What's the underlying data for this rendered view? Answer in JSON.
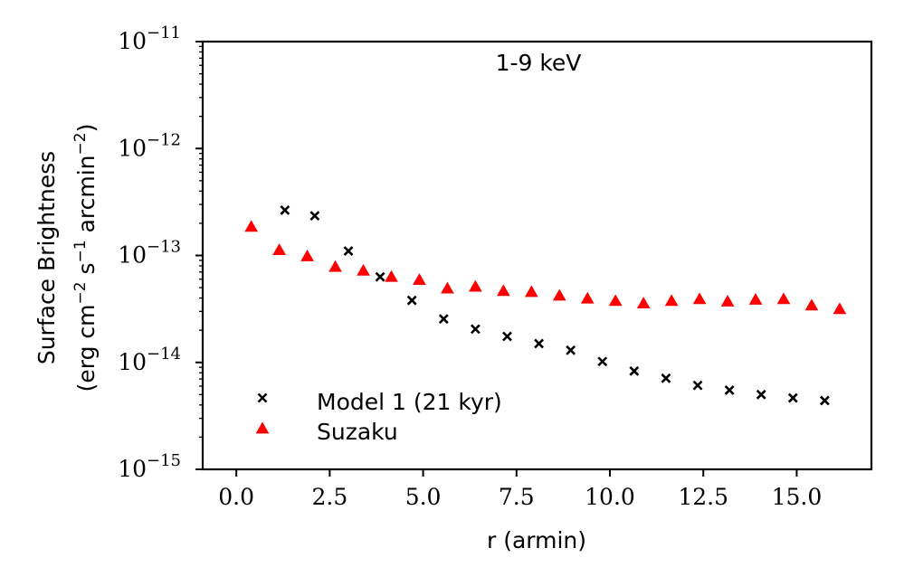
{
  "chart_data": {
    "type": "scatter",
    "title": "1-9 keV",
    "xlabel": "r (armin)",
    "ylabel": "Surface Brightness",
    "ylabel_line2_prefix": "(erg cm",
    "ylabel_line2_sup1": "−2",
    "ylabel_line2_mid1": " s",
    "ylabel_line2_sup2": "−1",
    "ylabel_line2_mid2": " arcmin",
    "ylabel_line2_sup3": "−2",
    "ylabel_line2_suffix": ")",
    "xlim": [
      -0.9,
      17.0
    ],
    "ylim_log10": [
      -15,
      -11
    ],
    "yscale": "log",
    "xticks": [
      0.0,
      2.5,
      5.0,
      7.5,
      10.0,
      12.5,
      15.0
    ],
    "xtick_labels": [
      "0.0",
      "2.5",
      "5.0",
      "7.5",
      "10.0",
      "12.5",
      "15.0"
    ],
    "yticks_log10": [
      -15,
      -14,
      -13,
      -12,
      -11
    ],
    "ytick_base": "10",
    "ytick_exponents": [
      "−15",
      "−14",
      "−13",
      "−12",
      "−11"
    ],
    "legend_position": "lower-left",
    "series": [
      {
        "name": "Model 1 (21 kyr)",
        "marker": "x",
        "color": "#000000",
        "x": [
          1.3,
          2.1,
          3.0,
          3.85,
          4.7,
          5.55,
          6.4,
          7.25,
          8.1,
          8.95,
          9.8,
          10.65,
          11.5,
          12.35,
          13.2,
          14.05,
          14.9,
          15.75
        ],
        "y": [
          2.65e-13,
          2.35e-13,
          1.1e-13,
          6.3e-14,
          3.8e-14,
          2.55e-14,
          2.05e-14,
          1.75e-14,
          1.5e-14,
          1.3e-14,
          1.02e-14,
          8.3e-15,
          7.1e-15,
          6.1e-15,
          5.5e-15,
          5e-15,
          4.65e-15,
          4.4e-15
        ]
      },
      {
        "name": "Suzaku",
        "marker": "triangle",
        "color": "#ff0000",
        "x": [
          0.4,
          1.15,
          1.9,
          2.65,
          3.4,
          4.15,
          4.9,
          5.65,
          6.4,
          7.15,
          7.9,
          8.65,
          9.4,
          10.15,
          10.9,
          11.65,
          12.4,
          13.15,
          13.9,
          14.65,
          15.4,
          16.15
        ],
        "y": [
          1.85e-13,
          1.12e-13,
          9.8e-14,
          7.8e-14,
          7.2e-14,
          6.3e-14,
          5.9e-14,
          4.9e-14,
          5.1e-14,
          4.65e-14,
          4.55e-14,
          4.2e-14,
          3.95e-14,
          3.75e-14,
          3.55e-14,
          3.75e-14,
          3.9e-14,
          3.7e-14,
          3.85e-14,
          3.9e-14,
          3.4e-14,
          3.15e-14
        ]
      }
    ]
  }
}
